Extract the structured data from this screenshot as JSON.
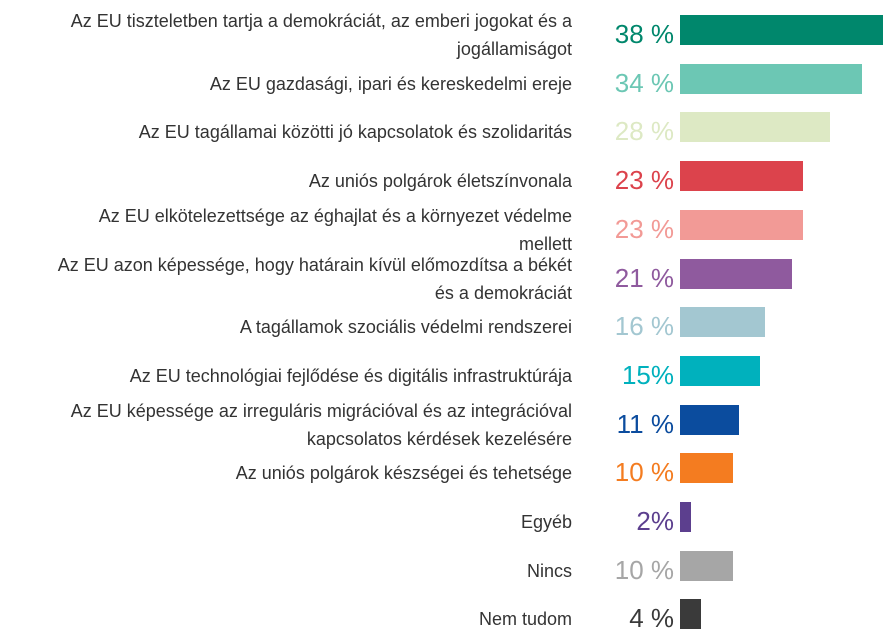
{
  "chart_data": {
    "type": "bar",
    "orientation": "horizontal",
    "categories": [
      "Az EU tiszteletben tartja a demokráciát, az emberi jogokat és a jogállamiságot",
      "Az EU gazdasági, ipari és kereskedelmi ereje",
      "Az EU tagállamai közötti jó kapcsolatok és szolidaritás",
      "Az uniós polgárok életszínvonala",
      "Az EU elkötelezettsége az éghajlat és a környezet védelme mellett",
      "Az EU azon képessége, hogy határain kívül előmozdítsa a békét és a demokráciát",
      "A tagállamok szociális védelmi rendszerei",
      "Az EU technológiai fejlődése és digitális infrastruktúrája",
      "Az EU képessége az irreguláris migrációval és az integrációval kapcsolatos kérdések kezelésére",
      "Az uniós polgárok készségei és tehetsége",
      "Egyéb",
      "Nincs",
      "Nem tudom"
    ],
    "values": [
      38,
      34,
      28,
      23,
      23,
      21,
      16,
      15,
      11,
      10,
      2,
      10,
      4
    ],
    "value_labels": [
      "38 %",
      "34 %",
      "28 %",
      "23 %",
      "23 %",
      "21 %",
      "16 %",
      "15%",
      "11 %",
      "10 %",
      "2%",
      "10 %",
      "4 %"
    ],
    "colors": [
      "#00876c",
      "#6cc7b4",
      "#dde9c4",
      "#dc434c",
      "#f29a96",
      "#8f5a9e",
      "#a3c7d1",
      "#00b1bd",
      "#0b4c9e",
      "#f47c20",
      "#5c3f8e",
      "#a6a6a6",
      "#3a3a3a"
    ]
  }
}
